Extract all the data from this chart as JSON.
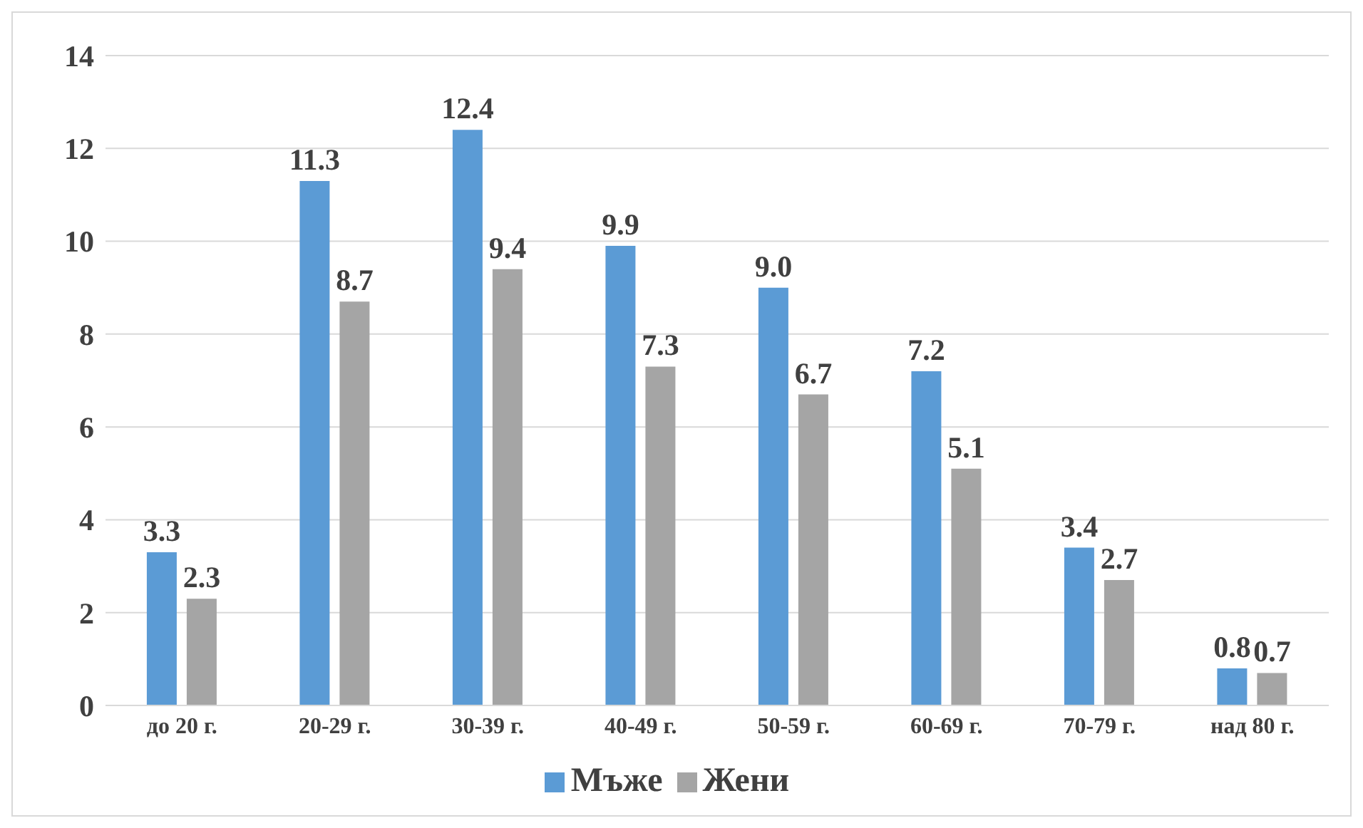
{
  "chart_data": {
    "type": "bar",
    "categories": [
      "до 20 г.",
      "20-29 г.",
      "30-39 г.",
      "40-49 г.",
      "50-59 г.",
      "60-69 г.",
      "70-79 г.",
      "над 80 г."
    ],
    "series": [
      {
        "name": "Мъже",
        "color": "#5b9bd5",
        "values": [
          3.3,
          11.3,
          12.4,
          9.9,
          9.0,
          7.2,
          3.4,
          0.8
        ],
        "value_labels": [
          "3.3",
          "11.3",
          "12.4",
          "9.9",
          "9.0",
          "7.2",
          "3.4",
          "0.8"
        ]
      },
      {
        "name": "Жени",
        "color": "#a5a5a5",
        "values": [
          2.3,
          8.7,
          9.4,
          7.3,
          6.7,
          5.1,
          2.7,
          0.7
        ],
        "value_labels": [
          "2.3",
          "8.7",
          "9.4",
          "7.3",
          "6.7",
          "5.1",
          "2.7",
          "0.7"
        ]
      }
    ],
    "ylim": [
      0,
      14
    ],
    "yticks": [
      0,
      2,
      4,
      6,
      8,
      10,
      12,
      14
    ],
    "grid": "y",
    "legend": "bottom"
  }
}
